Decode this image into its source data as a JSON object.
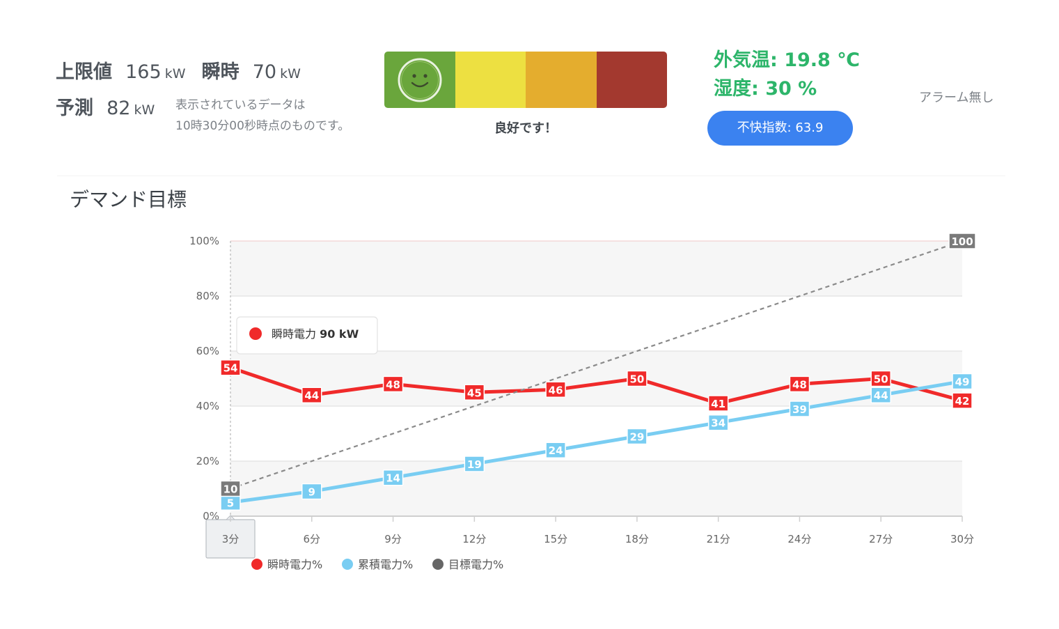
{
  "summary": {
    "limit_label": "上限値",
    "limit_value": "165",
    "limit_unit": "kW",
    "instant_label": "瞬時",
    "instant_value": "70",
    "instant_unit": "kW",
    "forecast_label": "予測",
    "forecast_value": "82",
    "forecast_unit": "kW",
    "note_line1": "表示されているデータは",
    "note_line2": "10時30分00秒時点のものです。"
  },
  "gauge": {
    "colors": [
      "#6aa63c",
      "#ede041",
      "#e4ad2e",
      "#a3392f"
    ],
    "active_segment": 0,
    "icon": "smiley-face-icon",
    "status_text": "良好です！"
  },
  "environment": {
    "temperature": "外気温: 19.8 ℃",
    "humidity": "湿度: 30 %",
    "discomfort_index": "不快指数: 63.9",
    "alarm": "アラーム無し"
  },
  "section_title": "デマンド目標",
  "chart_data": {
    "type": "line",
    "categories": [
      "3分",
      "6分",
      "9分",
      "12分",
      "15分",
      "18分",
      "21分",
      "24分",
      "27分",
      "30分"
    ],
    "yticks": [
      "0%",
      "20%",
      "40%",
      "60%",
      "80%",
      "100%"
    ],
    "ylim": [
      0,
      100
    ],
    "grid": true,
    "legend_position": "bottom-left",
    "series": [
      {
        "name": "瞬時電力%",
        "color": "#f02a2a",
        "style": "solid",
        "values": [
          54,
          44,
          48,
          45,
          46,
          50,
          41,
          48,
          50,
          42
        ]
      },
      {
        "name": "累積電力%",
        "color": "#79cdf2",
        "style": "solid",
        "values": [
          5,
          9,
          14,
          19,
          24,
          29,
          34,
          39,
          44,
          49
        ]
      },
      {
        "name": "目標電力%",
        "color": "#8a8a8a",
        "style": "dashed",
        "values": [
          10,
          null,
          null,
          null,
          null,
          null,
          null,
          null,
          null,
          100
        ]
      }
    ],
    "tooltip": {
      "series": "瞬時電力",
      "value": "90 kW"
    },
    "hovered_category": "3分"
  }
}
